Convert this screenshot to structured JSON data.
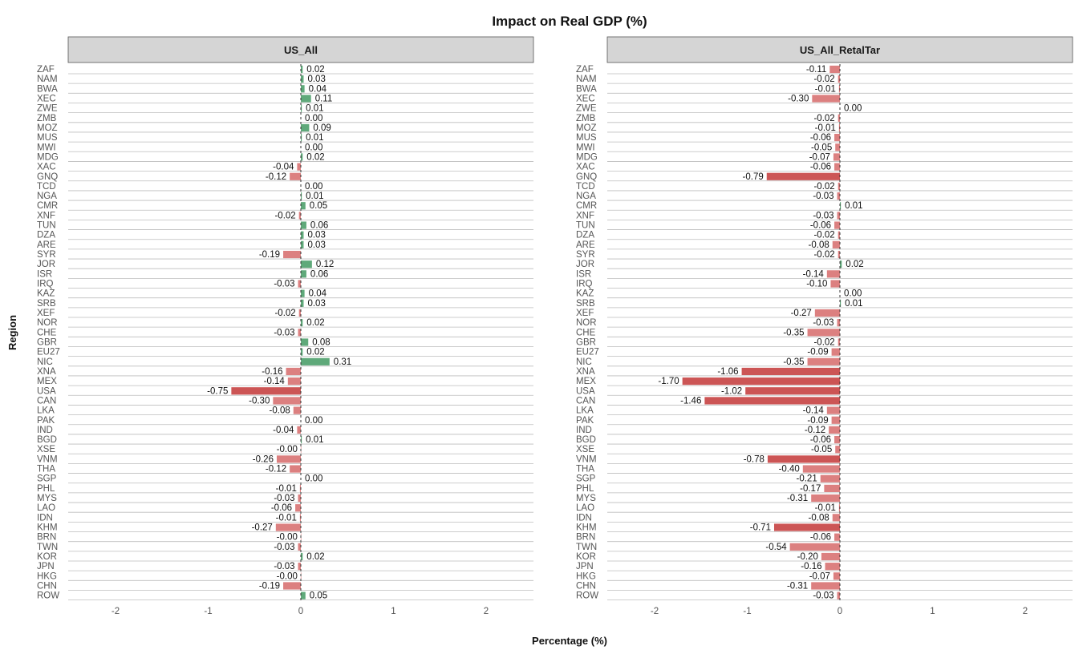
{
  "chart_data": {
    "type": "bar",
    "orientation": "horizontal",
    "title": "Impact on Real GDP (%)",
    "xlabel": "Percentage (%)",
    "ylabel": "Region",
    "xlim": [
      -2.5,
      2.5
    ],
    "x_ticks": [
      "-2",
      "-1",
      "0",
      "1",
      "2"
    ],
    "grid": "horizontal lines only",
    "legend": "none",
    "colors": {
      "positive": "#5fa97a",
      "negative": "#dc8080",
      "strong_negative": "#cc5555",
      "strip_bg": "#d5d5d5",
      "zero_line": "#333333"
    },
    "categories": [
      "ZAF",
      "NAM",
      "BWA",
      "XEC",
      "ZWE",
      "ZMB",
      "MOZ",
      "MUS",
      "MWI",
      "MDG",
      "XAC",
      "GNQ",
      "TCD",
      "NGA",
      "CMR",
      "XNF",
      "TUN",
      "DZA",
      "ARE",
      "SYR",
      "JOR",
      "ISR",
      "IRQ",
      "KAZ",
      "SRB",
      "XEF",
      "NOR",
      "CHE",
      "GBR",
      "EU27",
      "NIC",
      "XNA",
      "MEX",
      "USA",
      "CAN",
      "LKA",
      "PAK",
      "IND",
      "BGD",
      "XSE",
      "VNM",
      "THA",
      "SGP",
      "PHL",
      "MYS",
      "LAO",
      "IDN",
      "KHM",
      "BRN",
      "TWN",
      "KOR",
      "JPN",
      "HKG",
      "CHN",
      "ROW"
    ],
    "series": [
      {
        "name": "US_All",
        "values": [
          0.02,
          0.03,
          0.04,
          0.11,
          0.01,
          0.0,
          0.09,
          0.01,
          0.0,
          0.02,
          -0.04,
          -0.12,
          0.0,
          0.01,
          0.05,
          -0.02,
          0.06,
          0.03,
          0.03,
          -0.19,
          0.12,
          0.06,
          -0.03,
          0.04,
          0.03,
          -0.02,
          0.02,
          -0.03,
          0.08,
          0.02,
          0.31,
          -0.16,
          -0.14,
          -0.75,
          -0.3,
          -0.08,
          0.0,
          -0.04,
          0.01,
          -0.001,
          -0.26,
          -0.12,
          0.0,
          -0.01,
          -0.03,
          -0.06,
          -0.01,
          -0.27,
          -0.001,
          -0.03,
          0.02,
          -0.03,
          -0.001,
          -0.19,
          0.05
        ],
        "labels": [
          "0.02",
          "0.03",
          "0.04",
          "0.11",
          "0.01",
          "0.00",
          "0.09",
          "0.01",
          "0.00",
          "0.02",
          "-0.04",
          "-0.12",
          "0.00",
          "0.01",
          "0.05",
          "-0.02",
          "0.06",
          "0.03",
          "0.03",
          "-0.19",
          "0.12",
          "0.06",
          "-0.03",
          "0.04",
          "0.03",
          "-0.02",
          "0.02",
          "-0.03",
          "0.08",
          "0.02",
          "0.31",
          "-0.16",
          "-0.14",
          "-0.75",
          "-0.30",
          "-0.08",
          "0.00",
          "-0.04",
          "0.01",
          "-0.00",
          "-0.26",
          "-0.12",
          "0.00",
          "-0.01",
          "-0.03",
          "-0.06",
          "-0.01",
          "-0.27",
          "-0.00",
          "-0.03",
          "0.02",
          "-0.03",
          "-0.00",
          "-0.19",
          "0.05"
        ]
      },
      {
        "name": "US_All_RetalTar",
        "values": [
          -0.11,
          -0.02,
          -0.01,
          -0.3,
          0.0,
          -0.02,
          -0.01,
          -0.06,
          -0.05,
          -0.07,
          -0.06,
          -0.79,
          -0.02,
          -0.03,
          0.01,
          -0.03,
          -0.06,
          -0.02,
          -0.08,
          -0.02,
          0.02,
          -0.14,
          -0.1,
          0.0,
          0.01,
          -0.27,
          -0.03,
          -0.35,
          -0.02,
          -0.09,
          -0.35,
          -1.06,
          -1.7,
          -1.02,
          -1.46,
          -0.14,
          -0.09,
          -0.12,
          -0.06,
          -0.05,
          -0.78,
          -0.4,
          -0.21,
          -0.17,
          -0.31,
          -0.01,
          -0.08,
          -0.71,
          -0.06,
          -0.54,
          -0.2,
          -0.16,
          -0.07,
          -0.31,
          -0.03
        ],
        "labels": [
          "-0.11",
          "-0.02",
          "-0.01",
          "-0.30",
          "0.00",
          "-0.02",
          "-0.01",
          "-0.06",
          "-0.05",
          "-0.07",
          "-0.06",
          "-0.79",
          "-0.02",
          "-0.03",
          "0.01",
          "-0.03",
          "-0.06",
          "-0.02",
          "-0.08",
          "-0.02",
          "0.02",
          "-0.14",
          "-0.10",
          "0.00",
          "0.01",
          "-0.27",
          "-0.03",
          "-0.35",
          "-0.02",
          "-0.09",
          "-0.35",
          "-1.06",
          "-1.70",
          "-1.02",
          "-1.46",
          "-0.14",
          "-0.09",
          "-0.12",
          "-0.06",
          "-0.05",
          "-0.78",
          "-0.40",
          "-0.21",
          "-0.17",
          "-0.31",
          "-0.01",
          "-0.08",
          "-0.71",
          "-0.06",
          "-0.54",
          "-0.20",
          "-0.16",
          "-0.07",
          "-0.31",
          "-0.03"
        ]
      }
    ]
  }
}
